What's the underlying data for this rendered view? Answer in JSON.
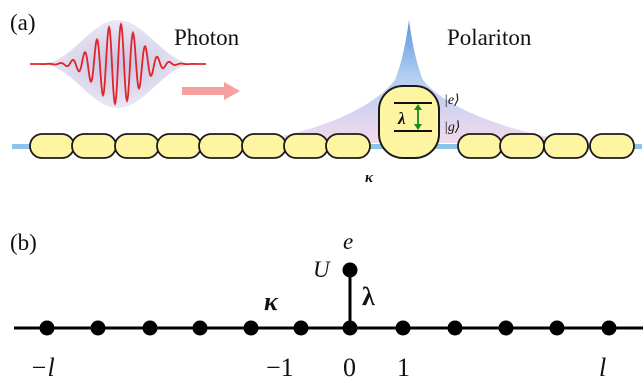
{
  "panel_a": {
    "label": "(a)",
    "photon_label": "Photon",
    "polariton_label": "Polariton",
    "coupling_label": "κ",
    "atom_coupling_label": "λ",
    "excited_state_label": "|e⟩",
    "ground_state_label": "|g⟩",
    "colors": {
      "waveguide": "#8fc4ea",
      "resonator_fill": "#fdf5a2",
      "resonator_stroke": "#1a1a1a",
      "photon_wave": "#e0242a",
      "envelope": "#b8b4d8",
      "arrow": "#f7a0a0",
      "polariton_peak": "#3f8bd9",
      "polariton_tail": "#e4b7db",
      "transition_arrow": "#1a8a1a"
    }
  },
  "panel_b": {
    "label": "(b)",
    "site_labels": {
      "minus_l": "−l",
      "minus_1": "−1",
      "zero": "0",
      "one": "1",
      "l": "l"
    },
    "emitter_label": "e",
    "interaction_label": "U",
    "hopping_label": "κ",
    "coupling_label": "λ",
    "colors": {
      "line": "#000000",
      "node": "#000000"
    }
  }
}
